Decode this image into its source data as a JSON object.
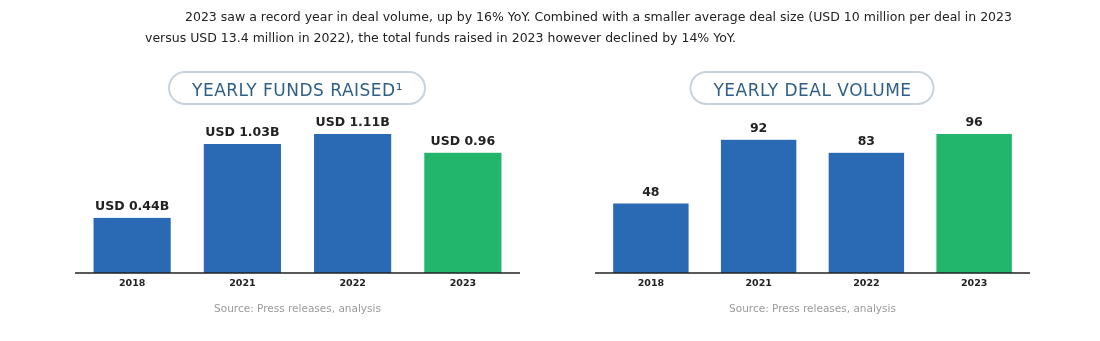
{
  "chart_data": [
    {
      "type": "bar",
      "title": "YEARLY FUNDS RAISED¹",
      "categories": [
        "2018",
        "2021",
        "2022",
        "2023"
      ],
      "values": [
        0.44,
        1.03,
        1.11,
        0.96
      ],
      "value_labels": [
        "USD 0.44B",
        "USD 1.03B",
        "USD 1.11B",
        "USD 0.96"
      ],
      "colors": [
        "#2a69b3",
        "#2a69b3",
        "#2a69b3",
        "#22b56c"
      ],
      "annotations": [
        "2023 saw a record year in deal volume, up by 16% YoY. Combined with a smaller average deal size (USD 10 million per deal in 2023 versus USD 13.4 million in 2022), the total funds raised in 2023 however declined by 14% YoY.",
        "Source: Press releases, analysis"
      ]
    },
    {
      "type": "bar",
      "title": "YEARLY DEAL VOLUME",
      "categories": [
        "2018",
        "2021",
        "2022",
        "2023"
      ],
      "values": [
        48,
        92,
        83,
        96
      ],
      "data_labels": true,
      "colors": [
        "#2a69b3",
        "#2a69b3",
        "#2a69b3",
        "#22b56c"
      ],
      "annotations": [
        "Source: Press releases, analysis"
      ]
    }
  ]
}
